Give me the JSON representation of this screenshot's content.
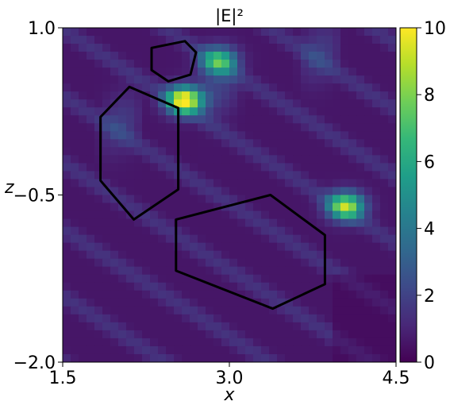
{
  "chart_data": {
    "type": "heatmap",
    "title": "|E|²",
    "xlabel": "x",
    "ylabel": "z",
    "xlim": [
      1.5,
      4.5
    ],
    "ylim": [
      -2.0,
      1.0
    ],
    "x_ticks": [
      "1.5",
      "3.0",
      "4.5"
    ],
    "y_ticks": [
      "1.0",
      "−0.5",
      "−2.0"
    ],
    "x_tick_values": [
      1.5,
      3.0,
      4.5
    ],
    "y_tick_values": [
      1.0,
      -0.5,
      -2.0
    ],
    "colorbar": {
      "min": 0,
      "max": 10,
      "ticks": [
        "0",
        "2",
        "4",
        "6",
        "8",
        "10"
      ],
      "tick_values": [
        0,
        2,
        4,
        6,
        8,
        10
      ],
      "colormap": "viridis"
    },
    "colormap_stops": [
      "#440154",
      "#482878",
      "#3e4989",
      "#31688e",
      "#26828e",
      "#1f9e89",
      "#35b779",
      "#6ece58",
      "#b5de2b",
      "#fde725"
    ],
    "hotspots": [
      {
        "x": 2.6,
        "z": 0.35,
        "value": 10
      },
      {
        "x": 4.05,
        "z": -0.6,
        "value": 8
      },
      {
        "x": 2.9,
        "z": 0.7,
        "value": 6
      }
    ],
    "hexagons": [
      {
        "name": "small-hexagon",
        "vertices": [
          [
            2.3,
            0.82
          ],
          [
            2.6,
            0.88
          ],
          [
            2.7,
            0.78
          ],
          [
            2.65,
            0.58
          ],
          [
            2.45,
            0.52
          ],
          [
            2.3,
            0.62
          ]
        ]
      },
      {
        "name": "left-hexagon",
        "vertices": [
          [
            2.1,
            0.47
          ],
          [
            2.54,
            0.28
          ],
          [
            2.54,
            -0.45
          ],
          [
            2.14,
            -0.72
          ],
          [
            1.84,
            -0.37
          ],
          [
            1.84,
            0.2
          ]
        ]
      },
      {
        "name": "bottom-hexagon",
        "vertices": [
          [
            2.52,
            -0.72
          ],
          [
            3.37,
            -0.5
          ],
          [
            3.86,
            -0.86
          ],
          [
            3.86,
            -1.3
          ],
          [
            3.39,
            -1.52
          ],
          [
            2.52,
            -1.18
          ]
        ]
      }
    ]
  }
}
